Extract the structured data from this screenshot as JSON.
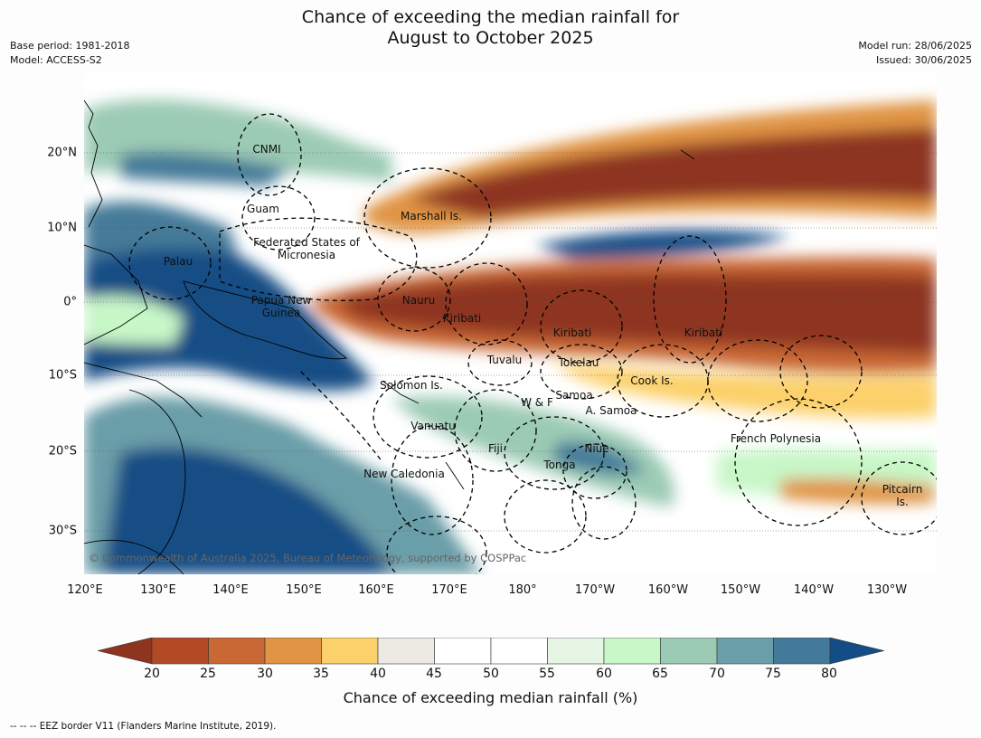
{
  "title_line1": "Chance of exceeding the median rainfall for",
  "title_line2": "August to October 2025",
  "meta_left": [
    "Base period: 1981-2018",
    "Model: ACCESS-S2"
  ],
  "meta_right": [
    "Model run: 28/06/2025",
    "Issued: 30/06/2025"
  ],
  "map": {
    "lon_labels": [
      "120°E",
      "130°E",
      "140°E",
      "150°E",
      "160°E",
      "170°E",
      "180°",
      "170°W",
      "160°W",
      "150°W",
      "140°W",
      "130°W"
    ],
    "lat_labels": [
      "20°N",
      "10°N",
      "0°",
      "10°S",
      "20°S",
      "30°S"
    ],
    "places": [
      {
        "name": "CNMI"
      },
      {
        "name": "Guam"
      },
      {
        "name": "Marshall Is."
      },
      {
        "name": "Federated States of Micronesia"
      },
      {
        "name": "Palau"
      },
      {
        "name": "Nauru"
      },
      {
        "name": "Papua New Guinea"
      },
      {
        "name": "Kiribati"
      },
      {
        "name": "Kiribati"
      },
      {
        "name": "Kiribati"
      },
      {
        "name": "Tuvalu"
      },
      {
        "name": "Tokelau"
      },
      {
        "name": "Cook Is."
      },
      {
        "name": "Solomon Is."
      },
      {
        "name": "Samoa"
      },
      {
        "name": "W & F"
      },
      {
        "name": "A. Samoa"
      },
      {
        "name": "Vanuatu"
      },
      {
        "name": "Fiji"
      },
      {
        "name": "Niue"
      },
      {
        "name": "Tonga"
      },
      {
        "name": "French Polynesia"
      },
      {
        "name": "New Caledonia"
      },
      {
        "name": "Pitcairn Is."
      }
    ],
    "copyright": "© Commonwealth of Australia 2025, Bureau of Meteorology, supported by COSPPac"
  },
  "colorbar": {
    "ticks": [
      "20",
      "25",
      "30",
      "35",
      "40",
      "45",
      "50",
      "55",
      "60",
      "65",
      "70",
      "75",
      "80"
    ],
    "colors": [
      "#8e3520",
      "#b24a26",
      "#c96834",
      "#e09444",
      "#fcd06a",
      "#edeae4",
      "#ffffff",
      "#ffffff",
      "#e7f5e5",
      "#c8f7c8",
      "#9bcbb4",
      "#6a9ea8",
      "#447a99",
      "#144d85"
    ],
    "title": "Chance of exceeding median rainfall (%)"
  },
  "footnote": "--  --  -- EEZ border V11 (Flanders Marine Institute, 2019)."
}
